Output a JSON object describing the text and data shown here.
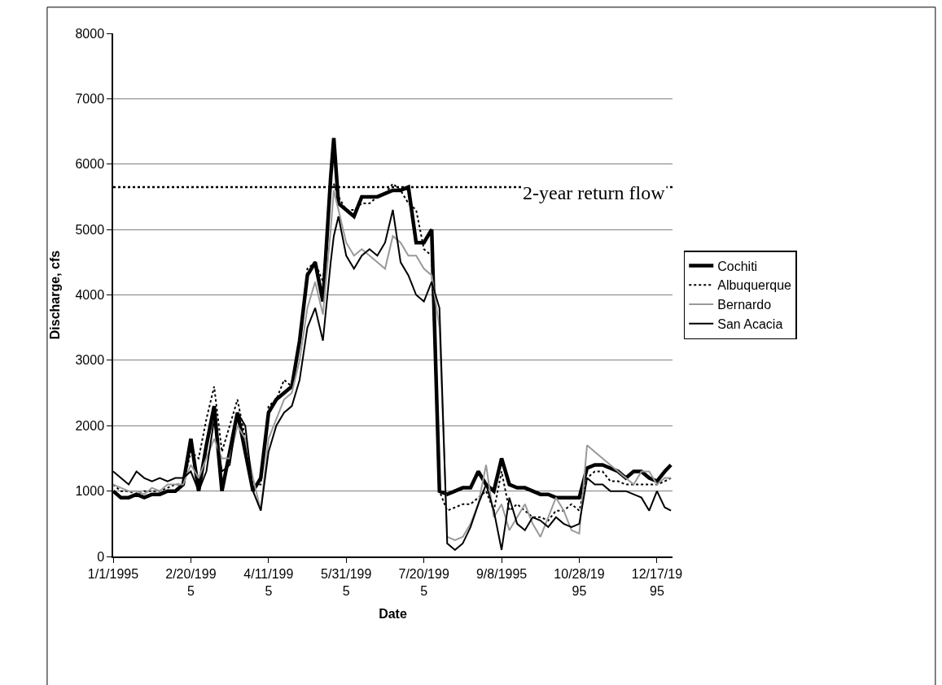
{
  "chart_data": {
    "type": "line",
    "xlabel": "Date",
    "ylabel": "Discharge, cfs",
    "x": [
      "1995-01-01",
      "1995-01-06",
      "1995-01-11",
      "1995-01-16",
      "1995-01-21",
      "1995-01-26",
      "1995-01-31",
      "1995-02-05",
      "1995-02-10",
      "1995-02-15",
      "1995-02-20",
      "1995-02-25",
      "1995-03-02",
      "1995-03-07",
      "1995-03-12",
      "1995-03-17",
      "1995-03-22",
      "1995-03-27",
      "1995-04-01",
      "1995-04-06",
      "1995-04-11",
      "1995-04-16",
      "1995-04-21",
      "1995-04-26",
      "1995-05-01",
      "1995-05-06",
      "1995-05-11",
      "1995-05-16",
      "1995-05-21",
      "1995-05-23",
      "1995-05-26",
      "1995-05-31",
      "1995-06-05",
      "1995-06-10",
      "1995-06-15",
      "1995-06-20",
      "1995-06-25",
      "1995-06-30",
      "1995-07-05",
      "1995-07-10",
      "1995-07-15",
      "1995-07-20",
      "1995-07-25",
      "1995-07-30",
      "1995-08-04",
      "1995-08-09",
      "1995-08-14",
      "1995-08-19",
      "1995-08-24",
      "1995-08-29",
      "1995-09-03",
      "1995-09-08",
      "1995-09-13",
      "1995-09-18",
      "1995-09-23",
      "1995-09-28",
      "1995-10-03",
      "1995-10-08",
      "1995-10-13",
      "1995-10-18",
      "1995-10-23",
      "1995-10-28",
      "1995-11-02",
      "1995-11-07",
      "1995-11-12",
      "1995-11-17",
      "1995-11-22",
      "1995-11-27",
      "1995-12-02",
      "1995-12-07",
      "1995-12-12",
      "1995-12-17",
      "1995-12-22",
      "1995-12-26"
    ],
    "series": [
      {
        "name": "Cochiti",
        "color": "#000000",
        "line_style": "solid",
        "values": [
          1000,
          900,
          900,
          950,
          900,
          950,
          950,
          1000,
          1000,
          1100,
          1800,
          1000,
          1700,
          2300,
          1000,
          1600,
          2200,
          1600,
          1000,
          1200,
          2200,
          2400,
          2500,
          2600,
          3300,
          4300,
          4500,
          3900,
          5800,
          6400,
          5400,
          5300,
          5200,
          5500,
          5500,
          5500,
          5550,
          5600,
          5600,
          5650,
          4800,
          4800,
          5000,
          1000,
          950,
          1000,
          1050,
          1050,
          1300,
          1100,
          1000,
          1500,
          1100,
          1050,
          1050,
          1000,
          950,
          950,
          900,
          900,
          900,
          900,
          1350,
          1400,
          1400,
          1350,
          1300,
          1200,
          1300,
          1300,
          1200,
          1150,
          1300,
          1400
        ]
      },
      {
        "name": "Albuquerque",
        "color": "#000000",
        "line_style": "dotted",
        "values": [
          1100,
          1000,
          1000,
          950,
          1000,
          1000,
          1000,
          1050,
          1100,
          1100,
          1600,
          1500,
          2100,
          2600,
          1600,
          2000,
          2400,
          1800,
          1100,
          1100,
          2300,
          2400,
          2700,
          2600,
          3300,
          4400,
          4500,
          4200,
          5600,
          5700,
          5500,
          5300,
          5300,
          5400,
          5400,
          5500,
          5550,
          5700,
          5600,
          5400,
          5300,
          4700,
          4600,
          1000,
          700,
          750,
          800,
          800,
          900,
          1000,
          700,
          1300,
          700,
          800,
          700,
          600,
          600,
          550,
          700,
          700,
          800,
          700,
          1200,
          1300,
          1300,
          1150,
          1150,
          1100,
          1100,
          1100,
          1100,
          1100,
          1150,
          1200
        ]
      },
      {
        "name": "Bernardo",
        "color": "#999999",
        "line_style": "solid",
        "values": [
          1100,
          1050,
          1000,
          1000,
          950,
          1050,
          1000,
          1100,
          1100,
          1100,
          1400,
          1200,
          1500,
          1800,
          1500,
          1500,
          2000,
          1800,
          1200,
          700,
          1800,
          2100,
          2400,
          2500,
          3000,
          3800,
          4200,
          3700,
          5000,
          5600,
          5300,
          4800,
          4600,
          4700,
          4600,
          4500,
          4400,
          4900,
          4800,
          4600,
          4600,
          4400,
          4300,
          3500,
          300,
          250,
          300,
          500,
          800,
          1400,
          600,
          800,
          400,
          600,
          800,
          500,
          300,
          600,
          900,
          700,
          400,
          350,
          1700,
          1600,
          1500,
          1400,
          1300,
          1200,
          1100,
          1300,
          1300,
          1100,
          1200,
          1200
        ]
      },
      {
        "name": "San Acacia",
        "color": "#000000",
        "line_style": "solid",
        "values": [
          1300,
          1200,
          1100,
          1300,
          1200,
          1150,
          1200,
          1150,
          1200,
          1200,
          1300,
          1000,
          1300,
          2100,
          1300,
          1400,
          2200,
          2000,
          1000,
          700,
          1600,
          2000,
          2200,
          2300,
          2700,
          3500,
          3800,
          3300,
          4500,
          4900,
          5200,
          4600,
          4400,
          4600,
          4700,
          4600,
          4800,
          5300,
          4500,
          4300,
          4000,
          3900,
          4200,
          3800,
          200,
          100,
          200,
          450,
          800,
          1100,
          700,
          100,
          900,
          500,
          400,
          600,
          550,
          450,
          600,
          500,
          450,
          500,
          1200,
          1100,
          1100,
          1000,
          1000,
          1000,
          950,
          900,
          700,
          1000,
          750,
          700
        ]
      }
    ],
    "xlim": [
      "1995-01-01",
      "1995-12-27"
    ],
    "xticks": [
      {
        "value": "1995-01-01",
        "label": "1/1/1995"
      },
      {
        "value": "1995-02-20",
        "label": "2/20/199\n5"
      },
      {
        "value": "1995-04-11",
        "label": "4/11/199\n5"
      },
      {
        "value": "1995-05-31",
        "label": "5/31/199\n5"
      },
      {
        "value": "1995-07-20",
        "label": "7/20/199\n5"
      },
      {
        "value": "1995-09-08",
        "label": "9/8/1995"
      },
      {
        "value": "1995-10-28",
        "label": "10/28/19\n95"
      },
      {
        "value": "1995-12-17",
        "label": "12/17/19\n95"
      }
    ],
    "ylim": [
      0,
      8000
    ],
    "yticks": [
      0,
      1000,
      2000,
      3000,
      4000,
      5000,
      6000,
      7000,
      8000
    ],
    "ref_lines": [
      {
        "axis": "y",
        "value": 5650,
        "label": "2-year return flow",
        "color": "#000000",
        "line_style": "dotted"
      }
    ],
    "grid": "y",
    "legend": "right",
    "marker": "none"
  }
}
